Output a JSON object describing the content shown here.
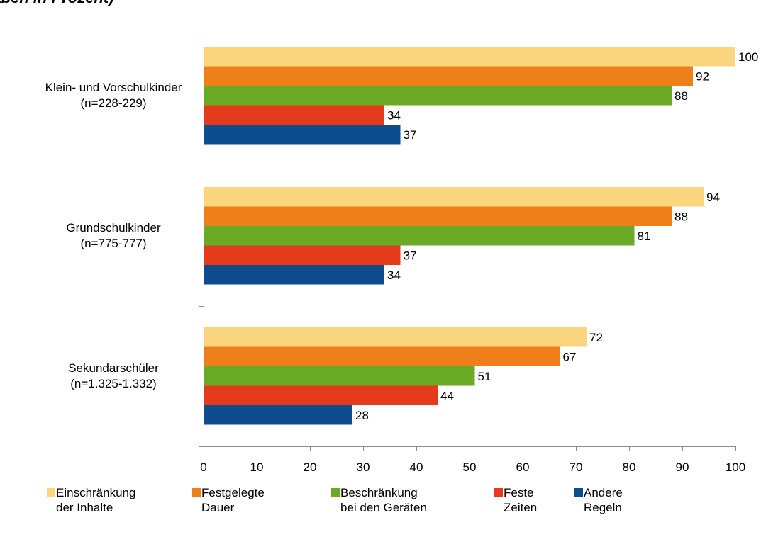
{
  "header_fragment": "gaben in Prozent)",
  "colors": {
    "Einschränkung der Inhalte": "#fcd67e",
    "Festgelegte Dauer": "#ee7f19",
    "Beschränkung bei den Geräten": "#6aaa24",
    "Feste Zeiten": "#e33b1b",
    "Andere Regeln": "#0d4c8d"
  },
  "chart_data": {
    "type": "bar",
    "orientation": "horizontal",
    "categories": [
      [
        "Klein- und Vorschulkinder",
        "(n=228-229)"
      ],
      [
        "Grundschulkinder",
        "(n=775-777)"
      ],
      [
        "Sekundarschüler",
        "(n=1.325-1.332)"
      ]
    ],
    "series": [
      {
        "name": [
          "Einschränkung",
          "der Inhalte"
        ],
        "values": [
          100,
          94,
          72
        ]
      },
      {
        "name": [
          "Festgelegte",
          "Dauer"
        ],
        "values": [
          92,
          88,
          67
        ]
      },
      {
        "name": [
          "Beschränkung",
          "bei den Geräten"
        ],
        "values": [
          88,
          81,
          51
        ]
      },
      {
        "name": [
          "Feste",
          "Zeiten"
        ],
        "values": [
          34,
          37,
          44
        ]
      },
      {
        "name": [
          "Andere",
          "Regeln"
        ],
        "values": [
          37,
          34,
          28
        ]
      }
    ],
    "xlim": [
      0,
      100
    ],
    "xticks": [
      0,
      10,
      20,
      30,
      40,
      50,
      60,
      70,
      80,
      90,
      100
    ],
    "grid": false,
    "legend_position": "bottom"
  }
}
